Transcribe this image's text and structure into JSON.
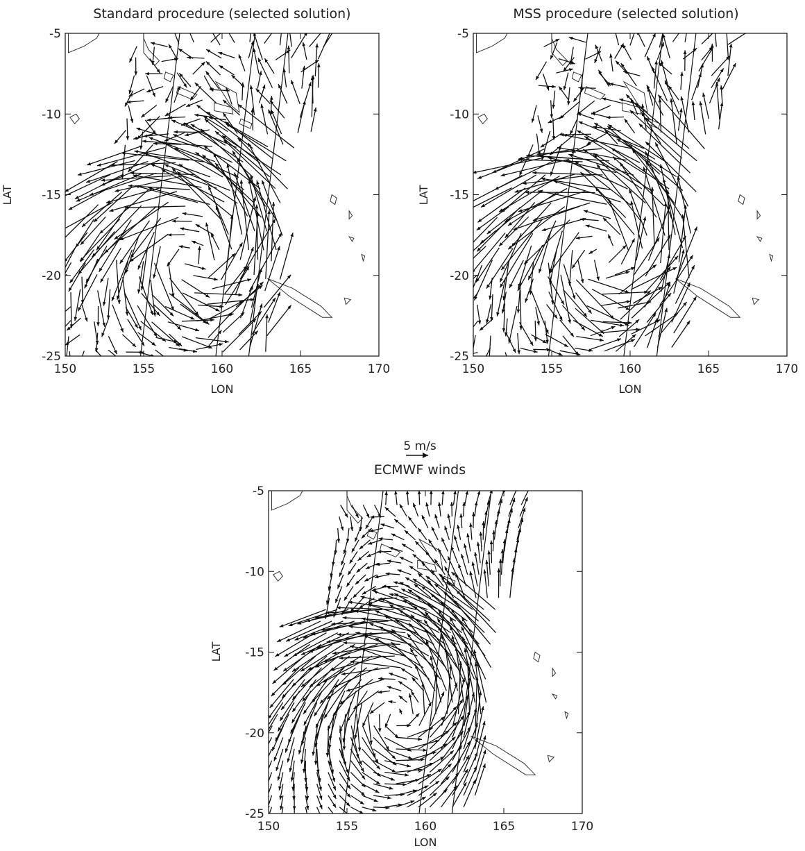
{
  "figure": {
    "colors": {
      "ink": "#111111",
      "coast": "#333333"
    }
  },
  "chart_data": [
    {
      "type": "quiver",
      "title": "Standard procedure (selected solution)",
      "xlabel": "LON",
      "ylabel": "LAT",
      "xlim": [
        150,
        170
      ],
      "ylim": [
        -25,
        -5
      ],
      "xticks": [
        "150",
        "155",
        "160",
        "165",
        "170"
      ],
      "yticks": [
        "-5",
        "-10",
        "-15",
        "-20",
        "-25"
      ],
      "grid": false,
      "field": "retrieved",
      "swath": [
        [
          [
            157.3,
            -5.0
          ],
          [
            154.8,
            -25.0
          ]
        ],
        [
          [
            162.1,
            -5.0
          ],
          [
            159.6,
            -25.0
          ]
        ],
        [
          [
            164.2,
            -5.0
          ],
          [
            161.7,
            -25.0
          ]
        ]
      ]
    },
    {
      "type": "quiver",
      "title": "MSS procedure (selected solution)",
      "xlabel": "LON",
      "ylabel": "LAT",
      "xlim": [
        150,
        170
      ],
      "ylim": [
        -25,
        -5
      ],
      "xticks": [
        "150",
        "155",
        "160",
        "165",
        "170"
      ],
      "yticks": [
        "-5",
        "-10",
        "-15",
        "-20",
        "-25"
      ],
      "grid": false,
      "field": "retrieved",
      "swath": [
        [
          [
            157.3,
            -5.0
          ],
          [
            154.8,
            -25.0
          ]
        ],
        [
          [
            162.1,
            -5.0
          ],
          [
            159.6,
            -25.0
          ]
        ],
        [
          [
            164.2,
            -5.0
          ],
          [
            161.7,
            -25.0
          ]
        ]
      ]
    },
    {
      "type": "quiver",
      "title": "ECMWF winds",
      "xlabel": "LON",
      "ylabel": "LAT",
      "xlim": [
        150,
        170
      ],
      "ylim": [
        -25,
        -5
      ],
      "xticks": [
        "150",
        "155",
        "160",
        "165",
        "170"
      ],
      "yticks": [
        "-5",
        "-10",
        "-15",
        "-20",
        "-25"
      ],
      "grid": false,
      "field": "model",
      "reference_vector": {
        "label": "5 m/s",
        "speed": 5
      },
      "swath": [
        [
          [
            157.3,
            -5.0
          ],
          [
            154.8,
            -25.0
          ]
        ],
        [
          [
            162.1,
            -5.0
          ],
          [
            159.6,
            -25.0
          ]
        ],
        [
          [
            164.2,
            -5.0
          ],
          [
            161.7,
            -25.0
          ]
        ]
      ]
    }
  ]
}
